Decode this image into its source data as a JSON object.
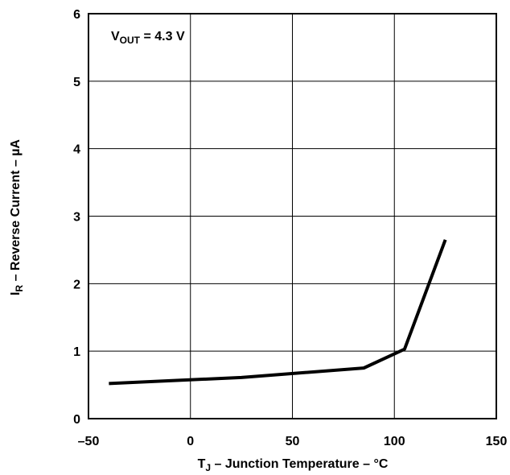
{
  "chart_data": {
    "type": "line",
    "title": "",
    "xlabel": {
      "pre": "T",
      "sub": "J",
      "post": " – Junction Temperature – °C"
    },
    "ylabel": {
      "pre": "I",
      "sub": "R",
      "post": " – Reverse Current – µA"
    },
    "xlim": [
      -50,
      150
    ],
    "ylim": [
      0,
      6
    ],
    "xticks": [
      -50,
      0,
      50,
      100,
      150
    ],
    "xtick_labels": [
      "–50",
      "0",
      "50",
      "100",
      "150"
    ],
    "yticks": [
      0,
      1,
      2,
      3,
      4,
      5,
      6
    ],
    "ytick_labels": [
      "0",
      "1",
      "2",
      "3",
      "4",
      "5",
      "6"
    ],
    "grid": true,
    "annotation": {
      "pre": "V",
      "sub": "OUT",
      "post": " = 4.3 V"
    },
    "series": [
      {
        "x": [
          -40,
          25,
          85,
          105,
          125
        ],
        "y": [
          0.52,
          0.61,
          0.75,
          1.03,
          2.65
        ],
        "color": "#000000"
      }
    ]
  }
}
